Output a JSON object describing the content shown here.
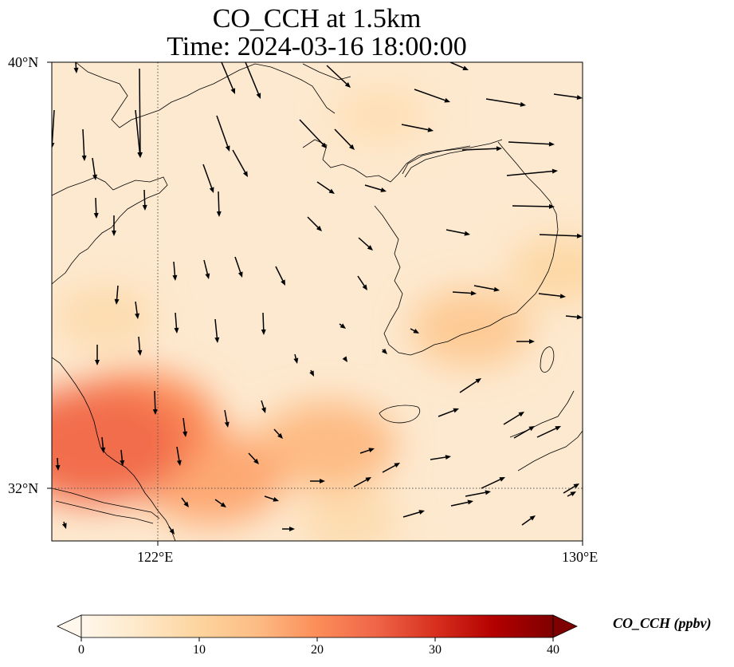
{
  "title": {
    "line1": "CO_CCH at 1.5km",
    "line2": "Time: 2024-03-16 18:00:00"
  },
  "axes": {
    "lat_ticks": [
      "40°N",
      "32°N"
    ],
    "lon_ticks": [
      "122°E",
      "130°E"
    ],
    "lat_range": [
      31,
      40
    ],
    "lon_range": [
      120,
      130
    ],
    "gridlines": "dotted at 122°E and 32°N"
  },
  "colorbar": {
    "title": "CO_CCH (ppbv)",
    "tick_labels": [
      "0",
      "10",
      "20",
      "30",
      "40"
    ],
    "range": [
      0,
      40
    ],
    "extend": "both",
    "colormap": "OrRd",
    "colors": [
      "#fff7ec",
      "#fee8c8",
      "#fdd49e",
      "#fdbb84",
      "#fc8d59",
      "#ef6548",
      "#d7301f",
      "#b30000",
      "#7f0000"
    ]
  },
  "chart_data": {
    "type": "heatmap",
    "variable": "CO_CCH",
    "unit": "ppbv",
    "level": "1.5km",
    "x": [
      120,
      130
    ],
    "y": [
      31,
      40
    ],
    "concentration_hotspots": [
      {
        "lon": 120.8,
        "lat": 32.8,
        "value": 24
      },
      {
        "lon": 121.6,
        "lat": 33.2,
        "value": 20
      },
      {
        "lon": 123.0,
        "lat": 32.2,
        "value": 17
      },
      {
        "lon": 125.2,
        "lat": 32.8,
        "value": 15
      },
      {
        "lon": 127.9,
        "lat": 35.0,
        "value": 12
      },
      {
        "lon": 129.6,
        "lat": 36.1,
        "value": 9
      },
      {
        "lon": 121.0,
        "lat": 35.2,
        "value": 8
      },
      {
        "lon": 126.2,
        "lat": 39.0,
        "value": 7
      },
      {
        "lon": 125.6,
        "lat": 31.4,
        "value": 8
      }
    ]
  }
}
